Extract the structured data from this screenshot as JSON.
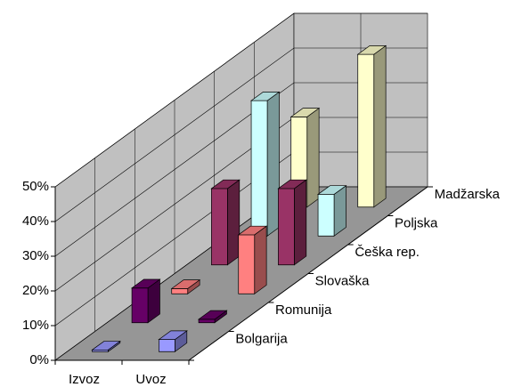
{
  "chart_data": {
    "type": "bar3d",
    "categories": [
      "Izvoz",
      "Uvoz"
    ],
    "series": [
      {
        "name": "Bolgarija",
        "color": "#9999ff",
        "values": [
          0.5,
          3.5
        ]
      },
      {
        "name": "Romunija",
        "color": "#660066",
        "values": [
          10,
          1
        ]
      },
      {
        "name": "Slovaška",
        "color": "#ff8080",
        "values": [
          1.5,
          17
        ]
      },
      {
        "name": "Češka rep.",
        "color": "#993366",
        "values": [
          22,
          22
        ]
      },
      {
        "name": "Poljska",
        "color": "#ccffff",
        "values": [
          39,
          12
        ]
      },
      {
        "name": "Madžarska",
        "color": "#ffffcc",
        "values": [
          26,
          44
        ]
      }
    ],
    "ylim": [
      0,
      50
    ],
    "yticks": [
      {
        "value": 0,
        "label": "0%"
      },
      {
        "value": 10,
        "label": "10%"
      },
      {
        "value": 20,
        "label": "20%"
      },
      {
        "value": 30,
        "label": "30%"
      },
      {
        "value": 40,
        "label": "40%"
      },
      {
        "value": 50,
        "label": "50%"
      }
    ],
    "grid": true
  }
}
